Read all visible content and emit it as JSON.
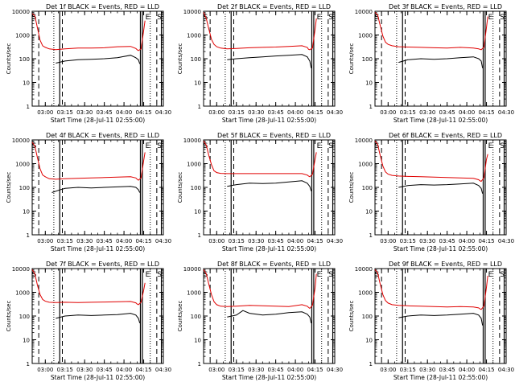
{
  "figure": {
    "xlabel": "Start Time (28-Jul-11 02:55:00)",
    "ylabel": "Counts/sec"
  },
  "colors": {
    "events": "#000000",
    "lld": "#e00000",
    "axis": "#000000"
  },
  "chart_data": [
    {
      "type": "line",
      "title": "Det 1f BLACK = Events, RED = LLD",
      "x_ticks": [
        "03:00",
        "03:15",
        "03:30",
        "03:45",
        "04:00",
        "04:15",
        "04:30"
      ],
      "y_ticks": [
        "1",
        "10",
        "100",
        "1000",
        "10000"
      ],
      "yscale": "log",
      "xlim_minutes": [
        -5,
        95
      ],
      "ylim": [
        1,
        10000
      ],
      "corner_labels": [
        "S",
        "E",
        "S"
      ],
      "series": [
        {
          "name": "Events",
          "x": [
            13,
            20,
            30,
            40,
            50,
            60,
            70,
            74,
            76,
            77
          ],
          "y": [
            65,
            80,
            90,
            95,
            100,
            110,
            140,
            110,
            90,
            60
          ]
        },
        {
          "name": "LLD",
          "x": [
            -5,
            -3,
            -1,
            1,
            3,
            5,
            8,
            13,
            20,
            30,
            40,
            50,
            60,
            70,
            74,
            75,
            76,
            78,
            80,
            81
          ],
          "y": [
            8000,
            6500,
            2000,
            600,
            350,
            300,
            260,
            240,
            260,
            280,
            280,
            290,
            320,
            330,
            270,
            240,
            220,
            260,
            1500,
            4000
          ]
        }
      ],
      "vlines_solid": [
        16,
        77.5,
        79,
        93.5
      ],
      "vlines_dashed": [
        0,
        18,
        90
      ],
      "vlines_dotted": [
        11.5,
        85
      ]
    },
    {
      "type": "line",
      "title": "Det 2f BLACK = Events, RED = LLD",
      "x_ticks": [
        "03:00",
        "03:15",
        "03:30",
        "03:45",
        "04:00",
        "04:15",
        "04:30"
      ],
      "y_ticks": [
        "1",
        "10",
        "100",
        "1000",
        "10000"
      ],
      "yscale": "log",
      "xlim_minutes": [
        -5,
        95
      ],
      "ylim": [
        1,
        10000
      ],
      "corner_labels": [
        "S",
        "E",
        "S"
      ],
      "series": [
        {
          "name": "Events",
          "x": [
            13,
            20,
            30,
            40,
            50,
            60,
            70,
            74,
            76,
            77
          ],
          "y": [
            90,
            100,
            110,
            120,
            130,
            140,
            150,
            120,
            80,
            40
          ]
        },
        {
          "name": "LLD",
          "x": [
            -5,
            -3,
            -1,
            1,
            3,
            5,
            8,
            13,
            20,
            30,
            40,
            50,
            60,
            70,
            74,
            75,
            76,
            78,
            80,
            81
          ],
          "y": [
            9000,
            5000,
            1800,
            650,
            400,
            320,
            280,
            260,
            270,
            290,
            300,
            310,
            330,
            350,
            300,
            250,
            240,
            280,
            1700,
            5000
          ]
        }
      ],
      "vlines_solid": [
        16,
        77.5,
        79,
        93.5
      ],
      "vlines_dashed": [
        0,
        18,
        90
      ],
      "vlines_dotted": [
        11.5,
        85
      ]
    },
    {
      "type": "line",
      "title": "Det 3f BLACK = Events, RED = LLD",
      "x_ticks": [
        "03:00",
        "03:15",
        "03:30",
        "03:45",
        "04:00",
        "04:15",
        "04:30"
      ],
      "y_ticks": [
        "1",
        "10",
        "100",
        "1000",
        "10000"
      ],
      "yscale": "log",
      "xlim_minutes": [
        -5,
        95
      ],
      "ylim": [
        1,
        10000
      ],
      "corner_labels": [
        "S",
        "E",
        "S"
      ],
      "series": [
        {
          "name": "Events",
          "x": [
            13,
            20,
            30,
            40,
            50,
            60,
            70,
            74,
            76,
            77
          ],
          "y": [
            70,
            90,
            100,
            95,
            100,
            110,
            120,
            100,
            80,
            40
          ]
        },
        {
          "name": "LLD",
          "x": [
            -5,
            -3,
            -1,
            1,
            3,
            5,
            8,
            13,
            20,
            30,
            40,
            50,
            60,
            70,
            74,
            75,
            76,
            78,
            80,
            81
          ],
          "y": [
            9000,
            7000,
            2500,
            900,
            500,
            400,
            350,
            320,
            310,
            300,
            290,
            280,
            300,
            280,
            260,
            250,
            240,
            300,
            2000,
            6000
          ]
        }
      ],
      "vlines_solid": [
        16,
        77.5,
        79,
        93.5
      ],
      "vlines_dashed": [
        0,
        18,
        90
      ],
      "vlines_dotted": [
        11.5,
        85
      ]
    },
    {
      "type": "line",
      "title": "Det 4f BLACK = Events, RED = LLD",
      "x_ticks": [
        "03:00",
        "03:15",
        "03:30",
        "03:45",
        "04:00",
        "04:15",
        "04:30"
      ],
      "y_ticks": [
        "1",
        "10",
        "100",
        "1000",
        "10000"
      ],
      "yscale": "log",
      "xlim_minutes": [
        -5,
        95
      ],
      "ylim": [
        1,
        10000
      ],
      "corner_labels": [
        "S",
        "E",
        "S"
      ],
      "series": [
        {
          "name": "Events",
          "x": [
            10,
            15,
            20,
            30,
            40,
            50,
            60,
            70,
            74,
            76,
            77
          ],
          "y": [
            60,
            75,
            90,
            100,
            95,
            100,
            105,
            110,
            100,
            80,
            60
          ]
        },
        {
          "name": "LLD",
          "x": [
            -5,
            -3,
            -1,
            1,
            3,
            5,
            8,
            13,
            20,
            30,
            40,
            50,
            60,
            70,
            74,
            75,
            76,
            78,
            80,
            81
          ],
          "y": [
            8000,
            5500,
            1800,
            600,
            330,
            280,
            230,
            220,
            230,
            240,
            250,
            260,
            270,
            280,
            250,
            220,
            200,
            250,
            1300,
            3000
          ]
        }
      ],
      "vlines_solid": [
        16,
        77.5,
        79,
        93.5
      ],
      "vlines_dashed": [
        0,
        18,
        90
      ],
      "vlines_dotted": [
        11.5,
        85
      ]
    },
    {
      "type": "line",
      "title": "Det 5f BLACK = Events, RED = LLD",
      "x_ticks": [
        "03:00",
        "03:15",
        "03:30",
        "03:45",
        "04:00",
        "04:15",
        "04:30"
      ],
      "y_ticks": [
        "1",
        "10",
        "100",
        "1000",
        "10000"
      ],
      "yscale": "log",
      "xlim_minutes": [
        -5,
        95
      ],
      "ylim": [
        1,
        10000
      ],
      "corner_labels": [
        "S",
        "E",
        "S"
      ],
      "series": [
        {
          "name": "Events",
          "x": [
            13,
            20,
            30,
            40,
            50,
            60,
            70,
            74,
            76,
            77
          ],
          "y": [
            110,
            130,
            150,
            145,
            150,
            170,
            190,
            150,
            110,
            70
          ]
        },
        {
          "name": "LLD",
          "x": [
            -5,
            -3,
            -1,
            1,
            3,
            5,
            8,
            13,
            20,
            30,
            40,
            50,
            60,
            70,
            74,
            75,
            76,
            78,
            80,
            81
          ],
          "y": [
            9000,
            6000,
            2200,
            900,
            500,
            420,
            390,
            380,
            380,
            380,
            380,
            380,
            380,
            380,
            330,
            300,
            280,
            350,
            1500,
            3000
          ]
        }
      ],
      "vlines_solid": [
        16,
        77.5,
        79,
        93.5
      ],
      "vlines_dashed": [
        0,
        18,
        90
      ],
      "vlines_dotted": [
        11.5,
        85
      ]
    },
    {
      "type": "line",
      "title": "Det 6f BLACK = Events, RED = LLD",
      "x_ticks": [
        "03:00",
        "03:15",
        "03:30",
        "03:45",
        "04:00",
        "04:15",
        "04:30"
      ],
      "y_ticks": [
        "1",
        "10",
        "100",
        "1000",
        "10000"
      ],
      "yscale": "log",
      "xlim_minutes": [
        -5,
        95
      ],
      "ylim": [
        1,
        10000
      ],
      "corner_labels": [
        "S",
        "E",
        "S"
      ],
      "series": [
        {
          "name": "Events",
          "x": [
            13,
            20,
            30,
            40,
            50,
            60,
            70,
            74,
            76,
            77
          ],
          "y": [
            100,
            120,
            130,
            125,
            130,
            140,
            150,
            120,
            90,
            55
          ]
        },
        {
          "name": "LLD",
          "x": [
            -5,
            -3,
            -1,
            1,
            3,
            5,
            8,
            13,
            20,
            30,
            40,
            50,
            60,
            70,
            74,
            75,
            76,
            78,
            80,
            81
          ],
          "y": [
            9000,
            6500,
            2200,
            800,
            450,
            360,
            320,
            300,
            290,
            280,
            270,
            260,
            250,
            240,
            210,
            190,
            180,
            250,
            1500,
            2500
          ]
        }
      ],
      "vlines_solid": [
        16,
        77.5,
        79,
        93.5
      ],
      "vlines_dashed": [
        0,
        18,
        90
      ],
      "vlines_dotted": [
        11.5,
        85
      ]
    },
    {
      "type": "line",
      "title": "Det 7f BLACK = Events, RED = LLD",
      "x_ticks": [
        "03:00",
        "03:15",
        "03:30",
        "03:45",
        "04:00",
        "04:15",
        "04:30"
      ],
      "y_ticks": [
        "1",
        "10",
        "100",
        "1000",
        "10000"
      ],
      "yscale": "log",
      "xlim_minutes": [
        -5,
        95
      ],
      "ylim": [
        1,
        10000
      ],
      "corner_labels": [
        "S",
        "E",
        "S"
      ],
      "series": [
        {
          "name": "Events",
          "x": [
            13,
            20,
            30,
            40,
            50,
            60,
            70,
            74,
            76,
            77
          ],
          "y": [
            80,
            100,
            110,
            105,
            110,
            115,
            130,
            110,
            80,
            50
          ]
        },
        {
          "name": "LLD",
          "x": [
            -5,
            -3,
            -1,
            1,
            3,
            5,
            8,
            13,
            20,
            30,
            40,
            50,
            60,
            70,
            74,
            75,
            76,
            78,
            80,
            81
          ],
          "y": [
            9000,
            6000,
            2000,
            800,
            500,
            420,
            380,
            370,
            380,
            370,
            380,
            390,
            400,
            410,
            360,
            320,
            300,
            380,
            1200,
            2500
          ]
        }
      ],
      "vlines_solid": [
        16,
        77.5,
        79,
        93.5
      ],
      "vlines_dashed": [
        0,
        18,
        90
      ],
      "vlines_dotted": [
        11.5,
        85
      ]
    },
    {
      "type": "line",
      "title": "Det 8f BLACK = Events, RED = LLD",
      "x_ticks": [
        "03:00",
        "03:15",
        "03:30",
        "03:45",
        "04:00",
        "04:15",
        "04:30"
      ],
      "y_ticks": [
        "1",
        "10",
        "100",
        "1000",
        "10000"
      ],
      "yscale": "log",
      "xlim_minutes": [
        -5,
        95
      ],
      "ylim": [
        1,
        10000
      ],
      "corner_labels": [
        "S",
        "E",
        "S"
      ],
      "series": [
        {
          "name": "Events",
          "x": [
            13,
            20,
            25,
            30,
            40,
            50,
            60,
            70,
            74,
            76,
            77
          ],
          "y": [
            90,
            110,
            170,
            130,
            110,
            120,
            140,
            150,
            120,
            90,
            50
          ]
        },
        {
          "name": "LLD",
          "x": [
            -5,
            -3,
            -1,
            1,
            3,
            5,
            8,
            13,
            20,
            30,
            40,
            50,
            60,
            70,
            74,
            75,
            76,
            78,
            80,
            81
          ],
          "y": [
            9000,
            6000,
            2200,
            800,
            400,
            300,
            260,
            250,
            260,
            280,
            270,
            260,
            250,
            300,
            260,
            230,
            210,
            280,
            1500,
            6000
          ]
        }
      ],
      "vlines_solid": [
        16,
        77.5,
        79,
        93.5
      ],
      "vlines_dashed": [
        0,
        18,
        90
      ],
      "vlines_dotted": [
        11.5,
        85
      ]
    },
    {
      "type": "line",
      "title": "Det 9f BLACK = Events, RED = LLD",
      "x_ticks": [
        "03:00",
        "03:15",
        "03:30",
        "03:45",
        "04:00",
        "04:15",
        "04:30"
      ],
      "y_ticks": [
        "1",
        "10",
        "100",
        "1000",
        "10000"
      ],
      "yscale": "log",
      "xlim_minutes": [
        -5,
        95
      ],
      "ylim": [
        1,
        10000
      ],
      "corner_labels": [
        "S",
        "E",
        "S"
      ],
      "series": [
        {
          "name": "Events",
          "x": [
            13,
            20,
            30,
            40,
            50,
            60,
            70,
            74,
            76,
            77
          ],
          "y": [
            85,
            100,
            110,
            105,
            110,
            120,
            130,
            110,
            80,
            40
          ]
        },
        {
          "name": "LLD",
          "x": [
            -5,
            -3,
            -1,
            1,
            3,
            5,
            8,
            13,
            20,
            30,
            40,
            50,
            60,
            70,
            74,
            75,
            76,
            78,
            80,
            81
          ],
          "y": [
            9000,
            6500,
            2200,
            800,
            450,
            350,
            300,
            280,
            270,
            260,
            250,
            240,
            250,
            240,
            220,
            200,
            190,
            260,
            1600,
            5000
          ]
        }
      ],
      "vlines_solid": [
        16,
        77.5,
        79,
        93.5
      ],
      "vlines_dashed": [
        0,
        18,
        90
      ],
      "vlines_dotted": [
        11.5,
        85
      ]
    }
  ]
}
